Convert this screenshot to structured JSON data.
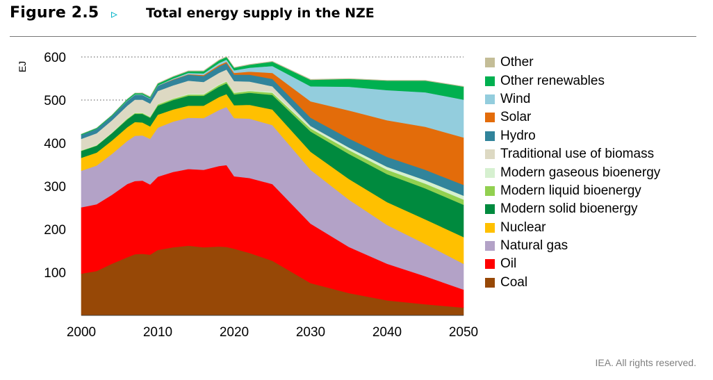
{
  "figure": {
    "number": "Figure 2.5",
    "arrow_icon": "▹",
    "title": "Total energy supply in the NZE"
  },
  "footer": {
    "credit": "IEA. All rights reserved."
  },
  "chart_data": {
    "type": "area",
    "stacked": true,
    "ylabel": "EJ",
    "xlabel": "",
    "xlim": [
      2000,
      2050
    ],
    "ylim": [
      0,
      620
    ],
    "x_ticks": [
      2000,
      2010,
      2020,
      2030,
      2040,
      2050
    ],
    "y_ticks": [
      100,
      200,
      300,
      400,
      500,
      600
    ],
    "y_gridlines": [
      500,
      600
    ],
    "grid": "dotted horizontal lines at 500 and 600",
    "legend_position": "right",
    "x": [
      2000,
      2002,
      2004,
      2006,
      2007,
      2008,
      2009,
      2010,
      2012,
      2014,
      2016,
      2018,
      2019,
      2020,
      2022,
      2025,
      2030,
      2035,
      2040,
      2045,
      2050
    ],
    "series": [
      {
        "name": "Coal",
        "color": "#974806",
        "values": [
          97,
          103,
          120,
          135,
          142,
          143,
          141,
          152,
          158,
          162,
          158,
          160,
          159,
          155,
          145,
          127,
          75,
          52,
          35,
          26,
          18
        ]
      },
      {
        "name": "Oil",
        "color": "#ff0000",
        "values": [
          154,
          155,
          160,
          170,
          170,
          170,
          163,
          170,
          175,
          178,
          180,
          187,
          190,
          168,
          174,
          178,
          138,
          107,
          85,
          65,
          42
        ]
      },
      {
        "name": "Natural gas",
        "color": "#b3a2c7",
        "values": [
          85,
          90,
          95,
          100,
          105,
          105,
          106,
          114,
          117,
          119,
          120,
          130,
          135,
          135,
          138,
          137,
          125,
          110,
          90,
          75,
          60
        ]
      },
      {
        "name": "Nuclear",
        "color": "#ffc000",
        "values": [
          30,
          30,
          31,
          32,
          32,
          30,
          29,
          30,
          28,
          28,
          29,
          30,
          30,
          30,
          32,
          36,
          42,
          48,
          53,
          57,
          62
        ]
      },
      {
        "name": "Modern solid bioenergy",
        "color": "#008a3e",
        "values": [
          16,
          16,
          17,
          18,
          19,
          20,
          20,
          21,
          22,
          23,
          23,
          24,
          25,
          25,
          28,
          34,
          47,
          58,
          65,
          72,
          75
        ]
      },
      {
        "name": "Modern liquid bioenergy",
        "color": "#92d050",
        "values": [
          1,
          1,
          1,
          2,
          2,
          2,
          2,
          3,
          3,
          3,
          3,
          4,
          4,
          4,
          4,
          5,
          7,
          9,
          10,
          11,
          12
        ]
      },
      {
        "name": "Modern gaseous bioenergy",
        "color": "#d6f0d0",
        "values": [
          1,
          1,
          1,
          1,
          1,
          1,
          1,
          1,
          1,
          2,
          2,
          2,
          2,
          2,
          2,
          3,
          4,
          6,
          7,
          8,
          9
        ]
      },
      {
        "name": "Traditional use of biomass",
        "color": "#ddd9c3",
        "values": [
          26,
          27,
          28,
          29,
          30,
          30,
          30,
          30,
          30,
          30,
          27,
          26,
          26,
          25,
          20,
          12,
          2,
          0,
          0,
          0,
          0
        ]
      },
      {
        "name": "Hydro",
        "color": "#31849b",
        "values": [
          9,
          10,
          10,
          11,
          11,
          11,
          11,
          12,
          13,
          14,
          14,
          15,
          15,
          15,
          16,
          17,
          19,
          21,
          23,
          24,
          25
        ]
      },
      {
        "name": "Solar",
        "color": "#e36c0a",
        "values": [
          0,
          0,
          0,
          0,
          0,
          0,
          0,
          0,
          1,
          1,
          2,
          3,
          3,
          4,
          7,
          14,
          38,
          65,
          85,
          100,
          110
        ]
      },
      {
        "name": "Wind",
        "color": "#93cddd",
        "values": [
          0,
          0,
          0,
          1,
          1,
          1,
          1,
          1,
          2,
          3,
          4,
          5,
          5,
          6,
          9,
          16,
          35,
          55,
          70,
          80,
          88
        ]
      },
      {
        "name": "Other renewables",
        "color": "#00b050",
        "values": [
          2,
          2,
          2,
          3,
          3,
          3,
          3,
          4,
          4,
          4,
          5,
          6,
          6,
          6,
          7,
          10,
          15,
          18,
          22,
          27,
          30
        ]
      },
      {
        "name": "Other",
        "color": "#c4bd97",
        "values": [
          0,
          0,
          0,
          0,
          0,
          1,
          1,
          1,
          1,
          1,
          1,
          1,
          1,
          1,
          1,
          1,
          1,
          1,
          1,
          1,
          1
        ]
      }
    ]
  }
}
